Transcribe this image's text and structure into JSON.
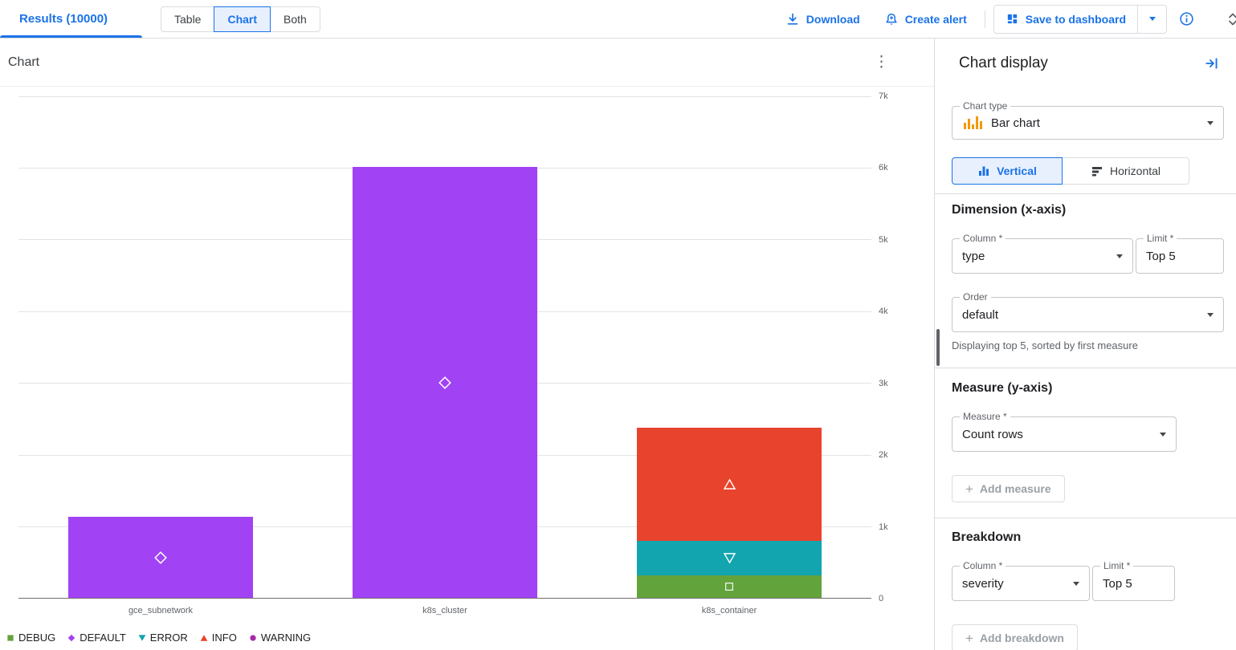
{
  "accent_color": "#1a73e8",
  "topbar": {
    "results_tab": "Results (10000)",
    "views": [
      "Table",
      "Chart",
      "Both"
    ],
    "selected_view": "Chart",
    "download_label": "Download",
    "create_alert_label": "Create alert",
    "save_to_dashboard_label": "Save to dashboard"
  },
  "chart_card": {
    "title": "Chart"
  },
  "chart_data": {
    "type": "bar",
    "stacked": true,
    "title": "Chart",
    "categories": [
      "gce_subnetwork",
      "k8s_cluster",
      "k8s_container"
    ],
    "series": [
      {
        "name": "DEBUG",
        "color": "#63A33C",
        "marker": "square",
        "values": [
          0,
          0,
          330
        ]
      },
      {
        "name": "DEFAULT",
        "color": "#A142F4",
        "marker": "diamond",
        "values": [
          1140,
          6020,
          0
        ]
      },
      {
        "name": "ERROR",
        "color": "#12A4AF",
        "marker": "triangle-down",
        "values": [
          0,
          0,
          470
        ]
      },
      {
        "name": "INFO",
        "color": "#E8432D",
        "marker": "triangle-up",
        "values": [
          0,
          0,
          1580
        ]
      },
      {
        "name": "WARNING",
        "color": "#A52BA5",
        "marker": "circle",
        "values": [
          0,
          0,
          0
        ]
      }
    ],
    "ylim": [
      0,
      7000
    ],
    "yticks": [
      0,
      1000,
      2000,
      3000,
      4000,
      5000,
      6000,
      7000
    ],
    "ytick_labels": [
      "0",
      "1k",
      "2k",
      "3k",
      "4k",
      "5k",
      "6k",
      "7k"
    ],
    "grid": true,
    "legend_position": "bottom-left"
  },
  "panel": {
    "title": "Chart display",
    "chart_type": {
      "label": "Chart type",
      "value": "Bar chart"
    },
    "orientation": {
      "vertical_label": "Vertical",
      "horizontal_label": "Horizontal",
      "selected": "Vertical"
    },
    "dimension": {
      "heading": "Dimension (x-axis)",
      "column_label": "Column *",
      "column_value": "type",
      "limit_label": "Limit *",
      "limit_value": "Top 5",
      "order_label": "Order",
      "order_value": "default",
      "note": "Displaying top 5, sorted by first measure"
    },
    "measure": {
      "heading": "Measure (y-axis)",
      "measure_label": "Measure *",
      "measure_value": "Count rows",
      "add_label": "Add measure"
    },
    "breakdown": {
      "heading": "Breakdown",
      "column_label": "Column *",
      "column_value": "severity",
      "limit_label": "Limit *",
      "limit_value": "Top 5",
      "add_label": "Add breakdown"
    }
  },
  "icons": {
    "download-icon": "arrow-down-to-tray",
    "create-alert-icon": "bell-plus",
    "save-to-dashboard-icon": "dashboard-grid",
    "dropdown-caret-icon": "▾",
    "info-icon": "ⓘ",
    "unfold-icon": "⇅",
    "kebab-menu-icon": "⋮",
    "collapse-panel-icon": "→|",
    "bar-chart-type-icon": "mini-bars",
    "vertical-bars-icon": "▮▮▮",
    "horizontal-bars-icon": "▬▬",
    "add-icon": "+"
  }
}
